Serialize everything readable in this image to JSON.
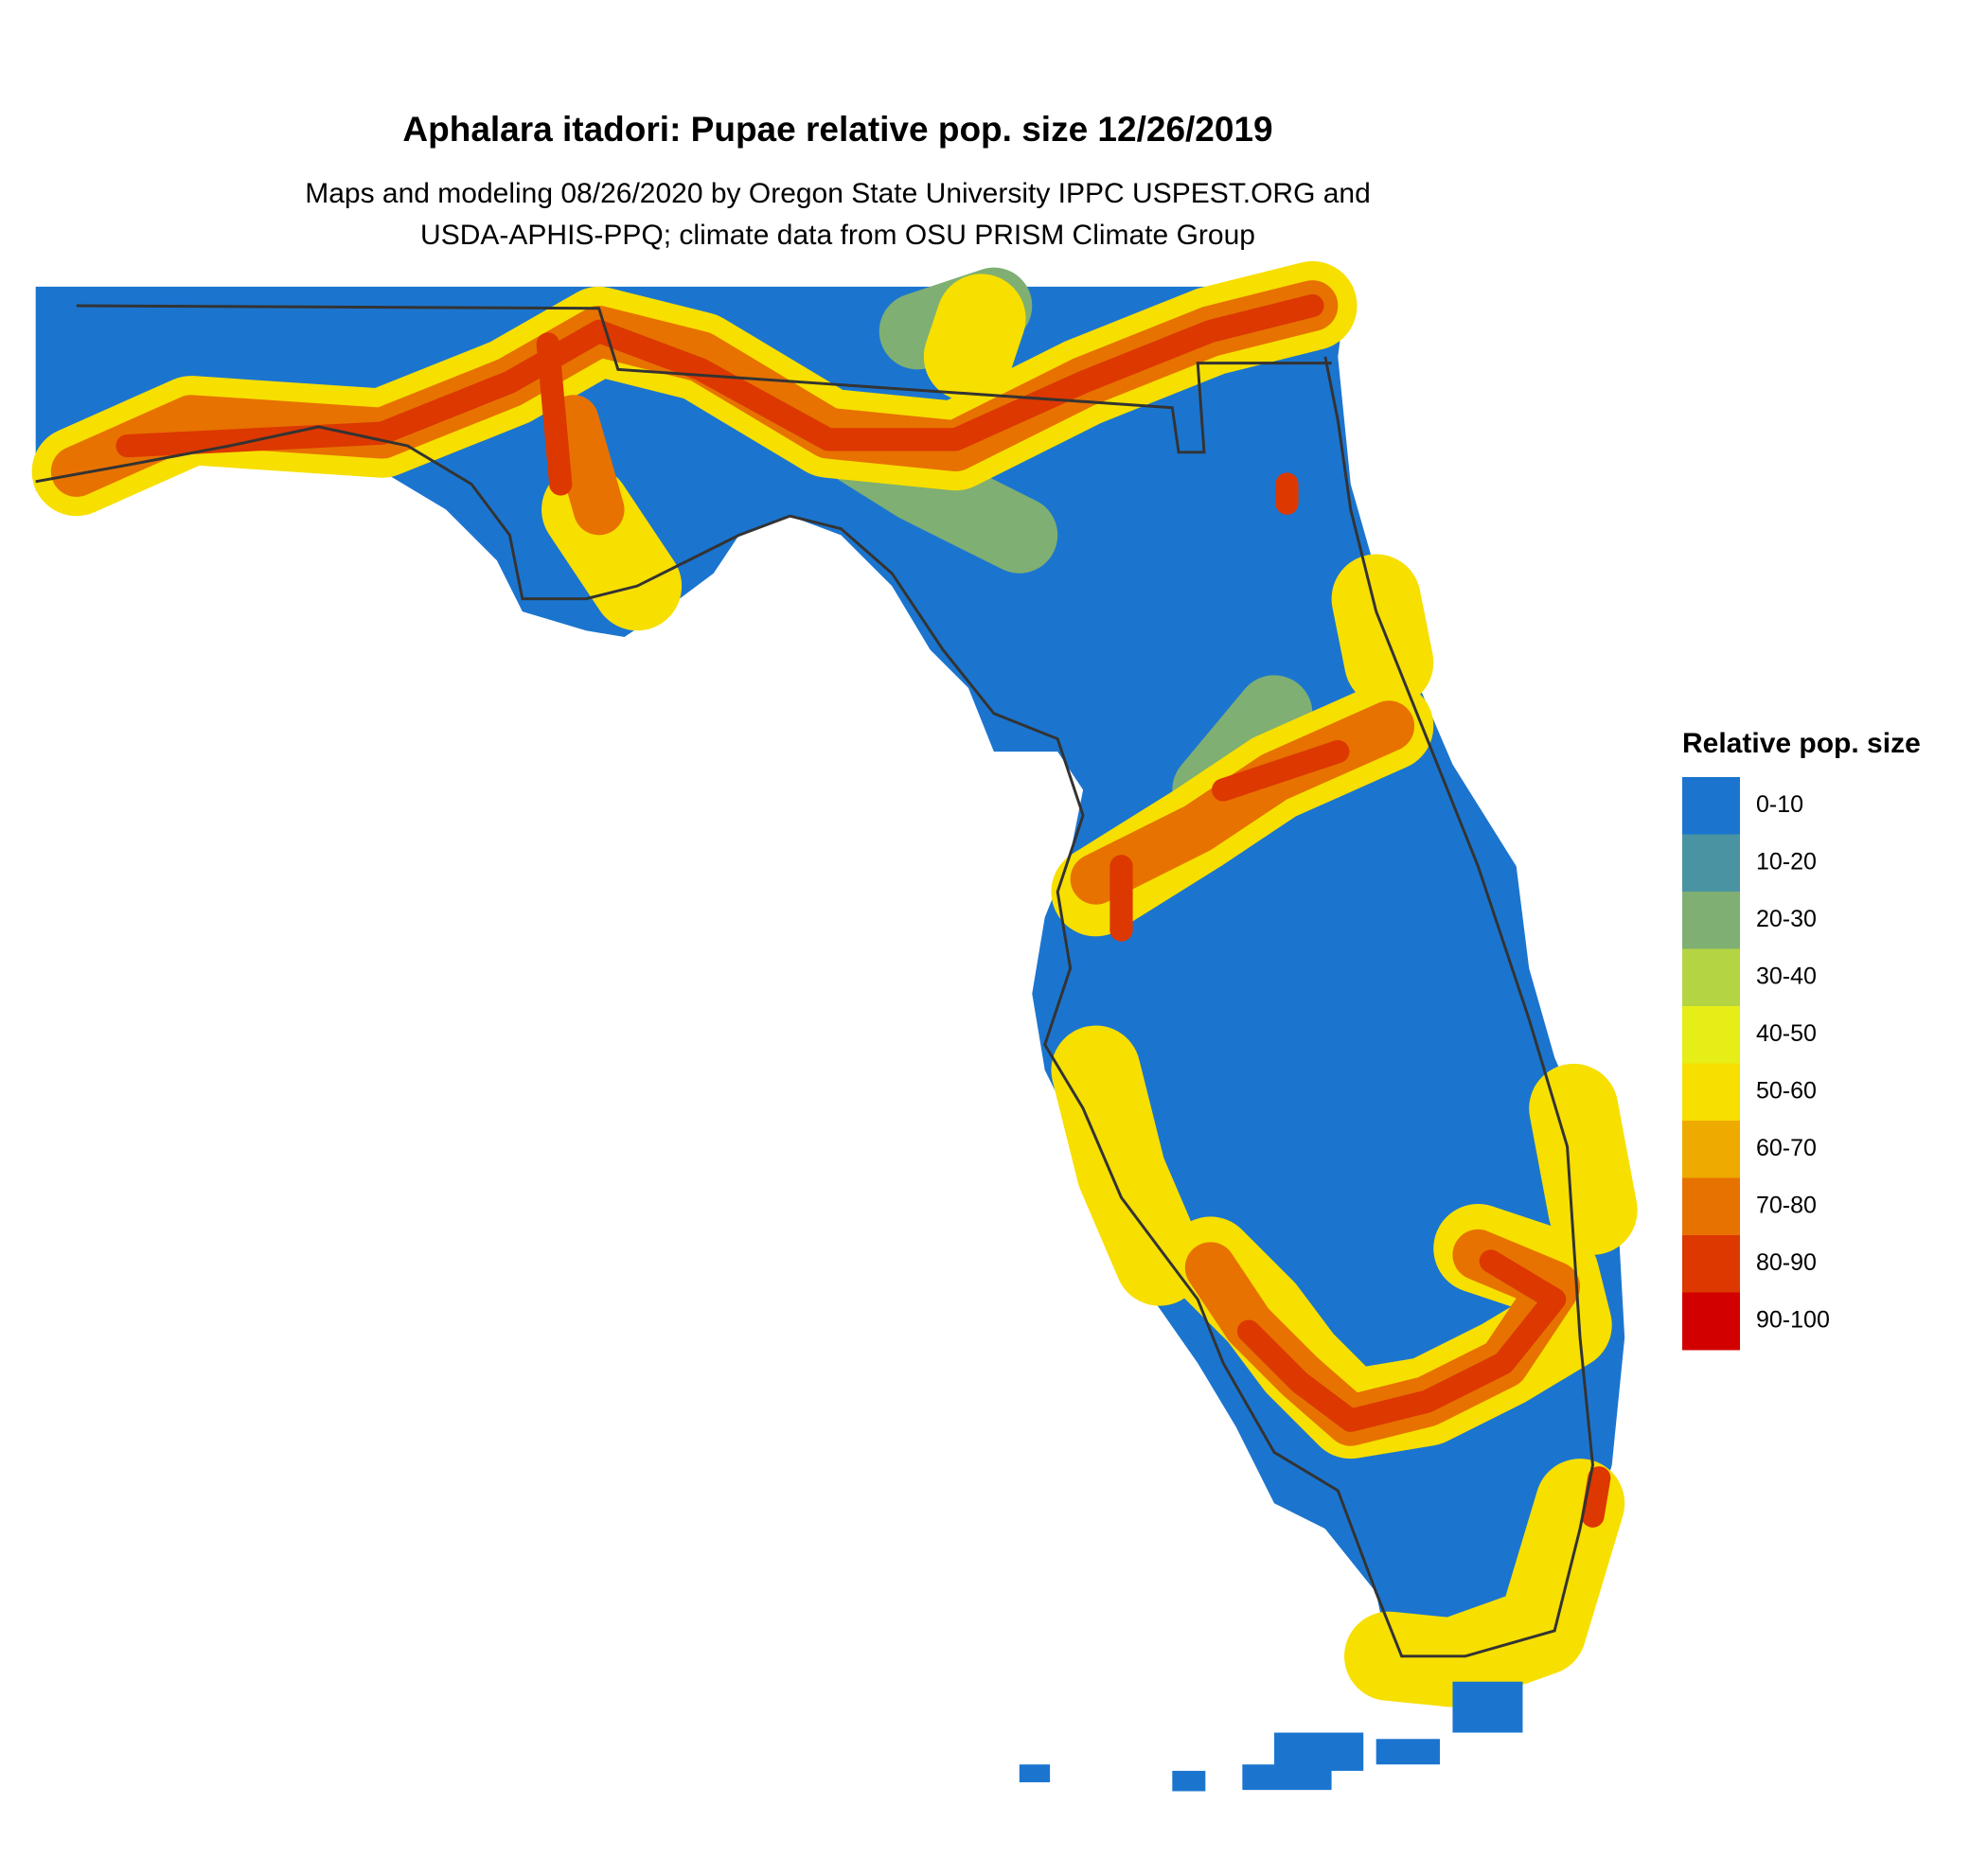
{
  "title": "Aphalara itadori: Pupae relative pop. size 12/26/2019",
  "subtitle": [
    "Maps and modeling 08/26/2020 by Oregon State University IPPC USPEST.ORG and",
    "USDA-APHIS-PPQ; climate data from OSU PRISM Climate Group"
  ],
  "legend": {
    "title": "Relative pop. size",
    "items": [
      {
        "label": "0-10",
        "color": "#1b75cf"
      },
      {
        "label": "10-20",
        "color": "#4a93a2"
      },
      {
        "label": "20-30",
        "color": "#7faf72"
      },
      {
        "label": "30-40",
        "color": "#b5d443"
      },
      {
        "label": "40-50",
        "color": "#e6ee18"
      },
      {
        "label": "50-60",
        "color": "#f7df00"
      },
      {
        "label": "60-70",
        "color": "#efaa00"
      },
      {
        "label": "70-80",
        "color": "#e77200"
      },
      {
        "label": "80-90",
        "color": "#dc3800"
      },
      {
        "label": "90-100",
        "color": "#d30000"
      }
    ]
  }
}
